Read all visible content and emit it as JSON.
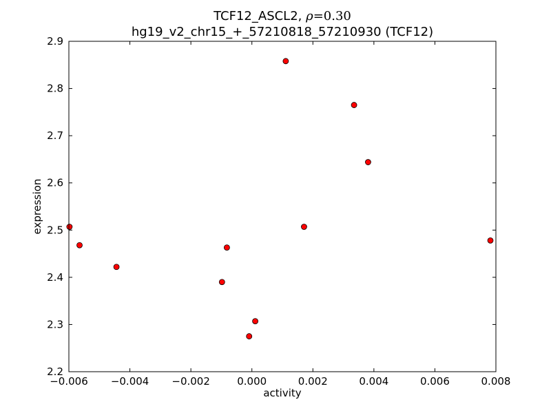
{
  "chart_data": {
    "type": "scatter",
    "title_line1_prefix": "TCF12_ASCL2, ",
    "title_rho_symbol": "ρ",
    "title_rho_value": "=0.30",
    "title_line2": "hg19_v2_chr15_+_57210818_57210930 (TCF12)",
    "xlabel": "activity",
    "ylabel": "expression",
    "xlim": [
      -0.006,
      0.008
    ],
    "ylim": [
      2.2,
      2.9
    ],
    "xticks": [
      -0.006,
      -0.004,
      -0.002,
      0.0,
      0.002,
      0.004,
      0.006,
      0.008
    ],
    "xtick_labels": [
      "−0.006",
      "−0.004",
      "−0.002",
      "0.000",
      "0.002",
      "0.004",
      "0.006",
      "0.008"
    ],
    "yticks": [
      2.2,
      2.3,
      2.4,
      2.5,
      2.6,
      2.7,
      2.8,
      2.9
    ],
    "ytick_labels": [
      "2.2",
      "2.3",
      "2.4",
      "2.5",
      "2.6",
      "2.7",
      "2.8",
      "2.9"
    ],
    "grid": false,
    "marker_color": "#ff0000",
    "marker_edge_color": "#000000",
    "points": [
      {
        "x": -0.00598,
        "y": 2.507
      },
      {
        "x": -0.00565,
        "y": 2.468
      },
      {
        "x": -0.00444,
        "y": 2.422
      },
      {
        "x": -0.00098,
        "y": 2.39
      },
      {
        "x": -0.00082,
        "y": 2.463
      },
      {
        "x": -9e-05,
        "y": 2.275
      },
      {
        "x": 0.00011,
        "y": 2.307
      },
      {
        "x": 0.00111,
        "y": 2.858
      },
      {
        "x": 0.00171,
        "y": 2.507
      },
      {
        "x": 0.00335,
        "y": 2.765
      },
      {
        "x": 0.00381,
        "y": 2.644
      },
      {
        "x": 0.00782,
        "y": 2.478
      }
    ]
  }
}
